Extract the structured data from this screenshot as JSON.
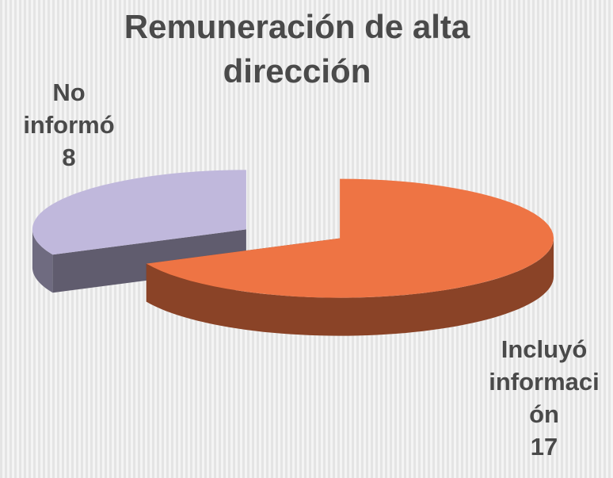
{
  "chart_data": {
    "type": "pie",
    "title": "Remuneración de alta dirección",
    "categories": [
      "Incluyó información",
      "No informó"
    ],
    "values": [
      17,
      8
    ],
    "colors": [
      "#ee7444",
      "#c0b8dc"
    ]
  }
}
